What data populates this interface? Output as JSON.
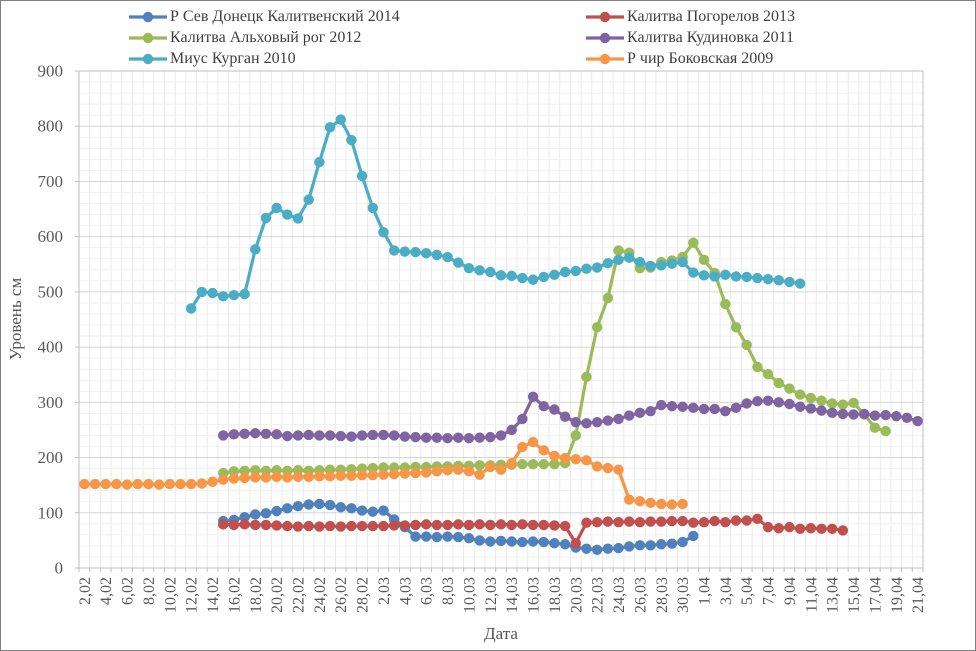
{
  "chart_data": {
    "type": "line",
    "title": "",
    "xlabel": "Дата",
    "ylabel": "Уровень см",
    "ylim": [
      0,
      900
    ],
    "y_tick_step": 100,
    "y_minor_step": 20,
    "grid": true,
    "legend_position": "top",
    "x_slot_count": 79,
    "x_ticklabels": [
      "2,02",
      "4,02",
      "6,02",
      "8,02",
      "10,02",
      "12,02",
      "14,02",
      "16,02",
      "18,02",
      "20,02",
      "22,02",
      "24,02",
      "26,02",
      "28,02",
      "2,03",
      "4,03",
      "6,03",
      "8,03",
      "10,03",
      "12,03",
      "14,03",
      "16,03",
      "18,03",
      "20,03",
      "22,03",
      "24,03",
      "26,03",
      "28,03",
      "30,03",
      "1,04",
      "3,04",
      "5,04",
      "7,04",
      "9,04",
      "11,04",
      "13,04",
      "15,04",
      "17,04",
      "19,04",
      "21,04"
    ],
    "colors": {
      "plot_border": "#bfbfbf",
      "grid_vertical": "#e4e4e4",
      "grid_major": "#d5d5d5",
      "grid_minor": "#eeeeee",
      "tick_text": "#595959",
      "tick_mark": "#bfbfbf"
    },
    "series": [
      {
        "name": "Р Сев Донецк Калитвенский 2014",
        "color": "#4f81bd",
        "start_index": 13,
        "values": [
          85,
          87,
          92,
          97,
          99,
          103,
          108,
          112,
          115,
          116,
          114,
          110,
          108,
          104,
          102,
          104,
          88,
          74,
          57,
          57,
          56,
          57,
          56,
          54,
          50,
          48,
          49,
          48,
          47,
          48,
          47,
          45,
          43,
          37,
          35,
          33,
          35,
          36,
          39,
          41,
          41,
          43,
          44,
          47,
          58
        ]
      },
      {
        "name": "Калитва Погорелов 2013",
        "color": "#c0504d",
        "start_index": 13,
        "values": [
          79,
          78,
          79,
          78,
          78,
          77,
          76,
          75,
          76,
          75,
          76,
          75,
          76,
          76,
          76,
          76,
          77,
          77,
          78,
          79,
          78,
          78,
          79,
          78,
          79,
          78,
          79,
          78,
          79,
          78,
          78,
          77,
          76,
          45,
          82,
          83,
          84,
          83,
          84,
          83,
          84,
          84,
          85,
          85,
          82,
          83,
          85,
          83,
          86,
          86,
          89,
          74,
          72,
          74,
          71,
          72,
          71,
          71,
          68
        ]
      },
      {
        "name": "Калитва Альховый рог 2012",
        "color": "#9bbb59",
        "start_index": 13,
        "values": [
          172,
          175,
          176,
          177,
          176,
          177,
          176,
          177,
          176,
          177,
          178,
          178,
          179,
          180,
          181,
          182,
          182,
          182,
          183,
          183,
          184,
          184,
          185,
          185,
          186,
          186,
          187,
          187,
          188,
          188,
          188,
          188,
          190,
          240,
          346,
          436,
          489,
          575,
          571,
          543,
          544,
          554,
          557,
          563,
          589,
          558,
          534,
          478,
          436,
          404,
          364,
          351,
          335,
          325,
          314,
          308,
          303,
          298,
          296,
          299,
          278,
          254,
          248
        ]
      },
      {
        "name": "Калитва Кудиновка 2011",
        "color": "#8064a2",
        "start_index": 13,
        "values": [
          240,
          242,
          243,
          244,
          243,
          242,
          239,
          240,
          241,
          240,
          240,
          239,
          238,
          240,
          241,
          241,
          240,
          238,
          237,
          236,
          236,
          235,
          236,
          235,
          236,
          237,
          240,
          250,
          270,
          310,
          293,
          287,
          274,
          264,
          262,
          264,
          267,
          270,
          276,
          281,
          284,
          295,
          293,
          292,
          290,
          288,
          288,
          284,
          290,
          298,
          302,
          303,
          300,
          297,
          292,
          289,
          285,
          281,
          279,
          278,
          279,
          276,
          277,
          275,
          272,
          266
        ]
      },
      {
        "name": "Миус Курган 2010",
        "color": "#4bacc6",
        "start_index": 10,
        "values": [
          470,
          500,
          498,
          492,
          494,
          496,
          577,
          634,
          652,
          640,
          633,
          667,
          735,
          798,
          812,
          775,
          710,
          652,
          608,
          575,
          573,
          572,
          570,
          567,
          563,
          553,
          543,
          539,
          536,
          530,
          529,
          525,
          522,
          527,
          531,
          536,
          538,
          542,
          544,
          552,
          558,
          562,
          554,
          547,
          548,
          551,
          554,
          535,
          530,
          528,
          531,
          528,
          527,
          525,
          523,
          521,
          518,
          515
        ]
      },
      {
        "name": "Р чир Боковская 2009",
        "color": "#f79646",
        "start_index": 0,
        "values": [
          152,
          152,
          152,
          152,
          151,
          152,
          152,
          151,
          152,
          152,
          152,
          153,
          156,
          160,
          162,
          163,
          164,
          164,
          165,
          164,
          165,
          165,
          166,
          166,
          167,
          167,
          168,
          168,
          169,
          170,
          171,
          172,
          173,
          175,
          177,
          178,
          175,
          169,
          183,
          178,
          190,
          219,
          228,
          213,
          203,
          199,
          197,
          195,
          184,
          181,
          178,
          124,
          121,
          118,
          116,
          115,
          116
        ]
      }
    ]
  }
}
